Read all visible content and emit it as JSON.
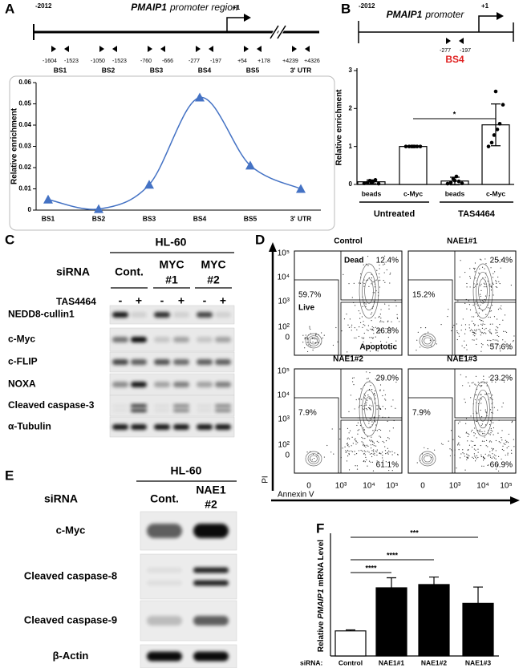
{
  "chart_data": [
    {
      "type": "line",
      "label": "A",
      "y_label": "Relative enrichment",
      "categories": [
        "BS1",
        "BS2",
        "BS3",
        "BS4",
        "BS5",
        "3' UTR"
      ],
      "values": [
        0.005,
        0.0005,
        0.012,
        0.053,
        0.021,
        0.01
      ],
      "color": "#4472c4",
      "ylim": [
        0,
        0.06
      ],
      "yticks": [
        0,
        0.01,
        0.02,
        0.03,
        0.04,
        0.05,
        0.06
      ]
    },
    {
      "type": "bar",
      "y_label": "Relative enrichment",
      "categories": [
        "beads",
        "c-Myc",
        "beads",
        "c-Myc"
      ],
      "groups": [
        "Untreated",
        "TAS4464"
      ],
      "values": [
        0.07,
        1,
        0.09,
        1.57
      ],
      "errors": [
        0.05,
        0,
        0.1,
        0.55
      ],
      "points": [
        [
          0.03,
          0.05,
          0.1,
          0.08,
          0.12,
          0.02,
          0.06
        ],
        [
          1,
          1,
          1,
          1,
          1,
          1,
          1
        ],
        [
          0.02,
          0.05,
          0.15,
          0.21,
          0.08,
          0.03,
          0.1
        ],
        [
          1.0,
          1.1,
          1.3,
          1.45,
          1.6,
          2.1,
          2.45
        ]
      ],
      "color": "#ffffff",
      "ylim": [
        0,
        3
      ],
      "yticks": [
        0,
        1,
        2,
        3
      ],
      "significance": [
        "*"
      ]
    },
    {
      "type": "bar",
      "label": "F",
      "y_label_parts": [
        "Relative",
        "PMAIP1",
        "mRNA Level"
      ],
      "x_label": "siRNA:",
      "categories": [
        "Control",
        "NAE1#1",
        "NAE1#2",
        "NAE1#3"
      ],
      "values": [
        1,
        2.72,
        2.85,
        2.1
      ],
      "errors": [
        0.04,
        0.4,
        0.3,
        0.65
      ],
      "colors": [
        "#ffffff",
        "#000000",
        "#000000",
        "#000000"
      ],
      "ylim": [
        0,
        4.8
      ],
      "significance": [
        "***",
        "****",
        "****"
      ]
    }
  ],
  "panels": {
    "a_schematic": {
      "start": "-2012",
      "gene": "PMAIP1",
      "title_rest": "promoter region",
      "tss": "+1",
      "sites": [
        {
          "name": "BS1",
          "start": "-1604",
          "end": "-1523"
        },
        {
          "name": "BS2",
          "start": "-1050",
          "end": "-1523"
        },
        {
          "name": "BS3",
          "start": "-760",
          "end": "-666"
        },
        {
          "name": "BS4",
          "start": "-277",
          "end": "-197"
        },
        {
          "name": "BS5",
          "start": "+54",
          "end": "+178"
        },
        {
          "name": "3' UTR",
          "start": "+4239",
          "end": "+4326"
        }
      ]
    },
    "b_schematic": {
      "label": "B",
      "start": "-2012",
      "gene": "PMAIP1",
      "title_rest": "promoter",
      "tss": "+1",
      "site": {
        "name": "BS4",
        "start": "-277",
        "end": "-197"
      }
    },
    "c": {
      "label": "C",
      "cell_line": "HL-60",
      "row_header": "siRNA",
      "conditions": [
        {
          "lines": [
            "Cont."
          ]
        },
        {
          "lines": [
            "MYC",
            "#1"
          ]
        },
        {
          "lines": [
            "MYC",
            "#2"
          ]
        }
      ],
      "treatment": "TAS4464",
      "signs": [
        "-",
        "+"
      ],
      "rows": [
        "NEDD8-cullin1",
        "c-Myc",
        "c-FLIP",
        "NOXA",
        "Cleaved caspase-3",
        "α-Tubulin"
      ]
    },
    "d": {
      "label": "D",
      "y_axis": "PI",
      "x_axis": "Annexin V",
      "yticks": [
        "10⁵",
        "10⁴",
        "10³",
        "10²",
        "0"
      ],
      "xticks": [
        "0",
        "10³",
        "10⁴",
        "10⁵"
      ],
      "gates": [
        "Dead",
        "Live",
        "Apoptotic"
      ],
      "plots": [
        {
          "title": "Control",
          "dead": "12.4%",
          "live": "59.7%",
          "apoptotic": "26.8%"
        },
        {
          "title": "NAE1#1",
          "dead": "25.4%",
          "live": "15.2%",
          "apoptotic": "57.6%"
        },
        {
          "title": "NAE1#2",
          "dead": "29.0%",
          "live": "7.9%",
          "apoptotic": "61.1%"
        },
        {
          "title": "NAE1#3",
          "dead": "23.2%",
          "live": "7.9%",
          "apoptotic": "66.9%"
        }
      ]
    },
    "e": {
      "label": "E",
      "cell_line": "HL-60",
      "row_header": "siRNA",
      "conditions": [
        {
          "lines": [
            "Cont."
          ]
        },
        {
          "lines": [
            "NAE1",
            "#2"
          ]
        }
      ],
      "rows": [
        "c-Myc",
        "Cleaved caspase-8",
        "Cleaved caspase-9",
        "β-Actin"
      ]
    }
  }
}
